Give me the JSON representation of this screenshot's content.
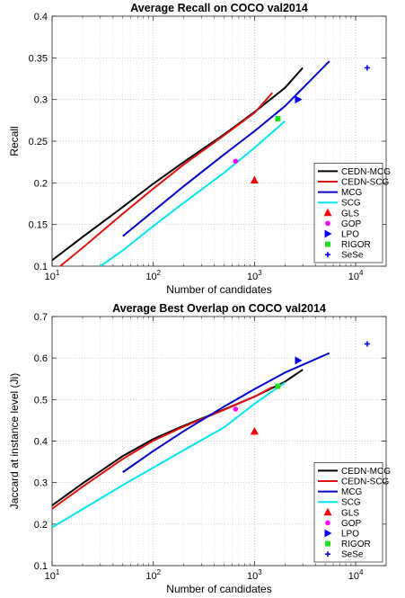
{
  "chart_data": [
    {
      "type": "line",
      "title": "Average Recall on COCO val2014",
      "xlabel": "Number of candidates",
      "ylabel": "Recall",
      "xscale": "log",
      "xlim": [
        10,
        20000
      ],
      "ylim": [
        0.1,
        0.4
      ],
      "xticks": [
        10,
        100,
        1000,
        10000
      ],
      "xtick_labels": [
        {
          "base": "10",
          "exp": "1"
        },
        {
          "base": "10",
          "exp": "2"
        },
        {
          "base": "10",
          "exp": "3"
        },
        {
          "base": "10",
          "exp": "4"
        }
      ],
      "yticks": [
        0.1,
        0.15,
        0.2,
        0.25,
        0.3,
        0.35,
        0.4
      ],
      "ytick_labels": [
        "0.1",
        "0.15",
        "0.2",
        "0.25",
        "0.3",
        "0.35",
        "0.4"
      ],
      "grid": true,
      "legend_position": "bottom-right",
      "series": [
        {
          "name": "CEDN-MCG",
          "kind": "line",
          "color": "#000000",
          "x": [
            10,
            20,
            50,
            100,
            200,
            500,
            1000,
            2000,
            3000
          ],
          "y": [
            0.107,
            0.135,
            0.171,
            0.199,
            0.225,
            0.258,
            0.285,
            0.314,
            0.338
          ]
        },
        {
          "name": "CEDN-SCG",
          "kind": "line",
          "color": "#dd1111",
          "x": [
            12,
            20,
            50,
            100,
            200,
            500,
            1000,
            1500
          ],
          "y": [
            0.1,
            0.122,
            0.163,
            0.193,
            0.222,
            0.257,
            0.284,
            0.308
          ]
        },
        {
          "name": "MCG",
          "kind": "line",
          "color": "#0000cc",
          "x": [
            50,
            100,
            200,
            500,
            1000,
            2000,
            5500
          ],
          "y": [
            0.136,
            0.166,
            0.196,
            0.234,
            0.262,
            0.292,
            0.346
          ]
        },
        {
          "name": "SCG",
          "kind": "line",
          "color": "#00e5ee",
          "x": [
            30,
            50,
            100,
            200,
            500,
            1000,
            2000
          ],
          "y": [
            0.1,
            0.119,
            0.148,
            0.176,
            0.212,
            0.242,
            0.274
          ]
        },
        {
          "name": "GLS",
          "kind": "marker",
          "marker": "triangle",
          "color": "#ff0000",
          "x": [
            1000
          ],
          "y": [
            0.203
          ]
        },
        {
          "name": "GOP",
          "kind": "marker",
          "marker": "dot",
          "color": "#ff00ff",
          "x": [
            650
          ],
          "y": [
            0.226
          ]
        },
        {
          "name": "LPO",
          "kind": "marker",
          "marker": "triangle-right",
          "color": "#0000ff",
          "x": [
            2700
          ],
          "y": [
            0.3
          ]
        },
        {
          "name": "RIGOR",
          "kind": "marker",
          "marker": "square",
          "color": "#22dd22",
          "x": [
            1700
          ],
          "y": [
            0.277
          ]
        },
        {
          "name": "SeSe",
          "kind": "marker",
          "marker": "plus",
          "color": "#0000ff",
          "x": [
            13000
          ],
          "y": [
            0.338
          ]
        }
      ]
    },
    {
      "type": "line",
      "title": "Average Best Overlap on COCO val2014",
      "xlabel": "Number of candidates",
      "ylabel": "Jaccard at instance level (Ji)",
      "xscale": "log",
      "xlim": [
        10,
        20000
      ],
      "ylim": [
        0.1,
        0.7
      ],
      "xticks": [
        10,
        100,
        1000,
        10000
      ],
      "xtick_labels": [
        {
          "base": "10",
          "exp": "1"
        },
        {
          "base": "10",
          "exp": "2"
        },
        {
          "base": "10",
          "exp": "3"
        },
        {
          "base": "10",
          "exp": "4"
        }
      ],
      "yticks": [
        0.1,
        0.2,
        0.3,
        0.4,
        0.5,
        0.6,
        0.7
      ],
      "ytick_labels": [
        "0.1",
        "0.2",
        "0.3",
        "0.4",
        "0.5",
        "0.6",
        "0.7"
      ],
      "grid": true,
      "legend_position": "bottom-right",
      "series": [
        {
          "name": "CEDN-MCG",
          "kind": "line",
          "color": "#000000",
          "x": [
            10,
            20,
            50,
            100,
            200,
            500,
            1000,
            2000,
            3000
          ],
          "y": [
            0.245,
            0.298,
            0.364,
            0.405,
            0.437,
            0.476,
            0.507,
            0.543,
            0.572
          ]
        },
        {
          "name": "CEDN-SCG",
          "kind": "line",
          "color": "#dd1111",
          "x": [
            10,
            20,
            50,
            100,
            200,
            500,
            1000,
            1500
          ],
          "y": [
            0.237,
            0.29,
            0.357,
            0.401,
            0.435,
            0.475,
            0.507,
            0.53
          ]
        },
        {
          "name": "MCG",
          "kind": "line",
          "color": "#0000cc",
          "x": [
            50,
            100,
            200,
            500,
            1000,
            2000,
            5500
          ],
          "y": [
            0.325,
            0.376,
            0.424,
            0.483,
            0.525,
            0.565,
            0.612
          ]
        },
        {
          "name": "SCG",
          "kind": "line",
          "color": "#00e5ee",
          "x": [
            10,
            20,
            50,
            100,
            200,
            500,
            1000,
            2000
          ],
          "y": [
            0.192,
            0.236,
            0.294,
            0.336,
            0.378,
            0.433,
            0.49,
            0.541
          ]
        },
        {
          "name": "GLS",
          "kind": "marker",
          "marker": "triangle",
          "color": "#ff0000",
          "x": [
            1000
          ],
          "y": [
            0.423
          ]
        },
        {
          "name": "GOP",
          "kind": "marker",
          "marker": "dot",
          "color": "#ff00ff",
          "x": [
            650
          ],
          "y": [
            0.477
          ]
        },
        {
          "name": "LPO",
          "kind": "marker",
          "marker": "triangle-right",
          "color": "#0000ff",
          "x": [
            2700
          ],
          "y": [
            0.594
          ]
        },
        {
          "name": "RIGOR",
          "kind": "marker",
          "marker": "square",
          "color": "#22dd22",
          "x": [
            1700
          ],
          "y": [
            0.532
          ]
        },
        {
          "name": "SeSe",
          "kind": "marker",
          "marker": "plus",
          "color": "#0000ff",
          "x": [
            13000
          ],
          "y": [
            0.634
          ]
        }
      ]
    }
  ]
}
